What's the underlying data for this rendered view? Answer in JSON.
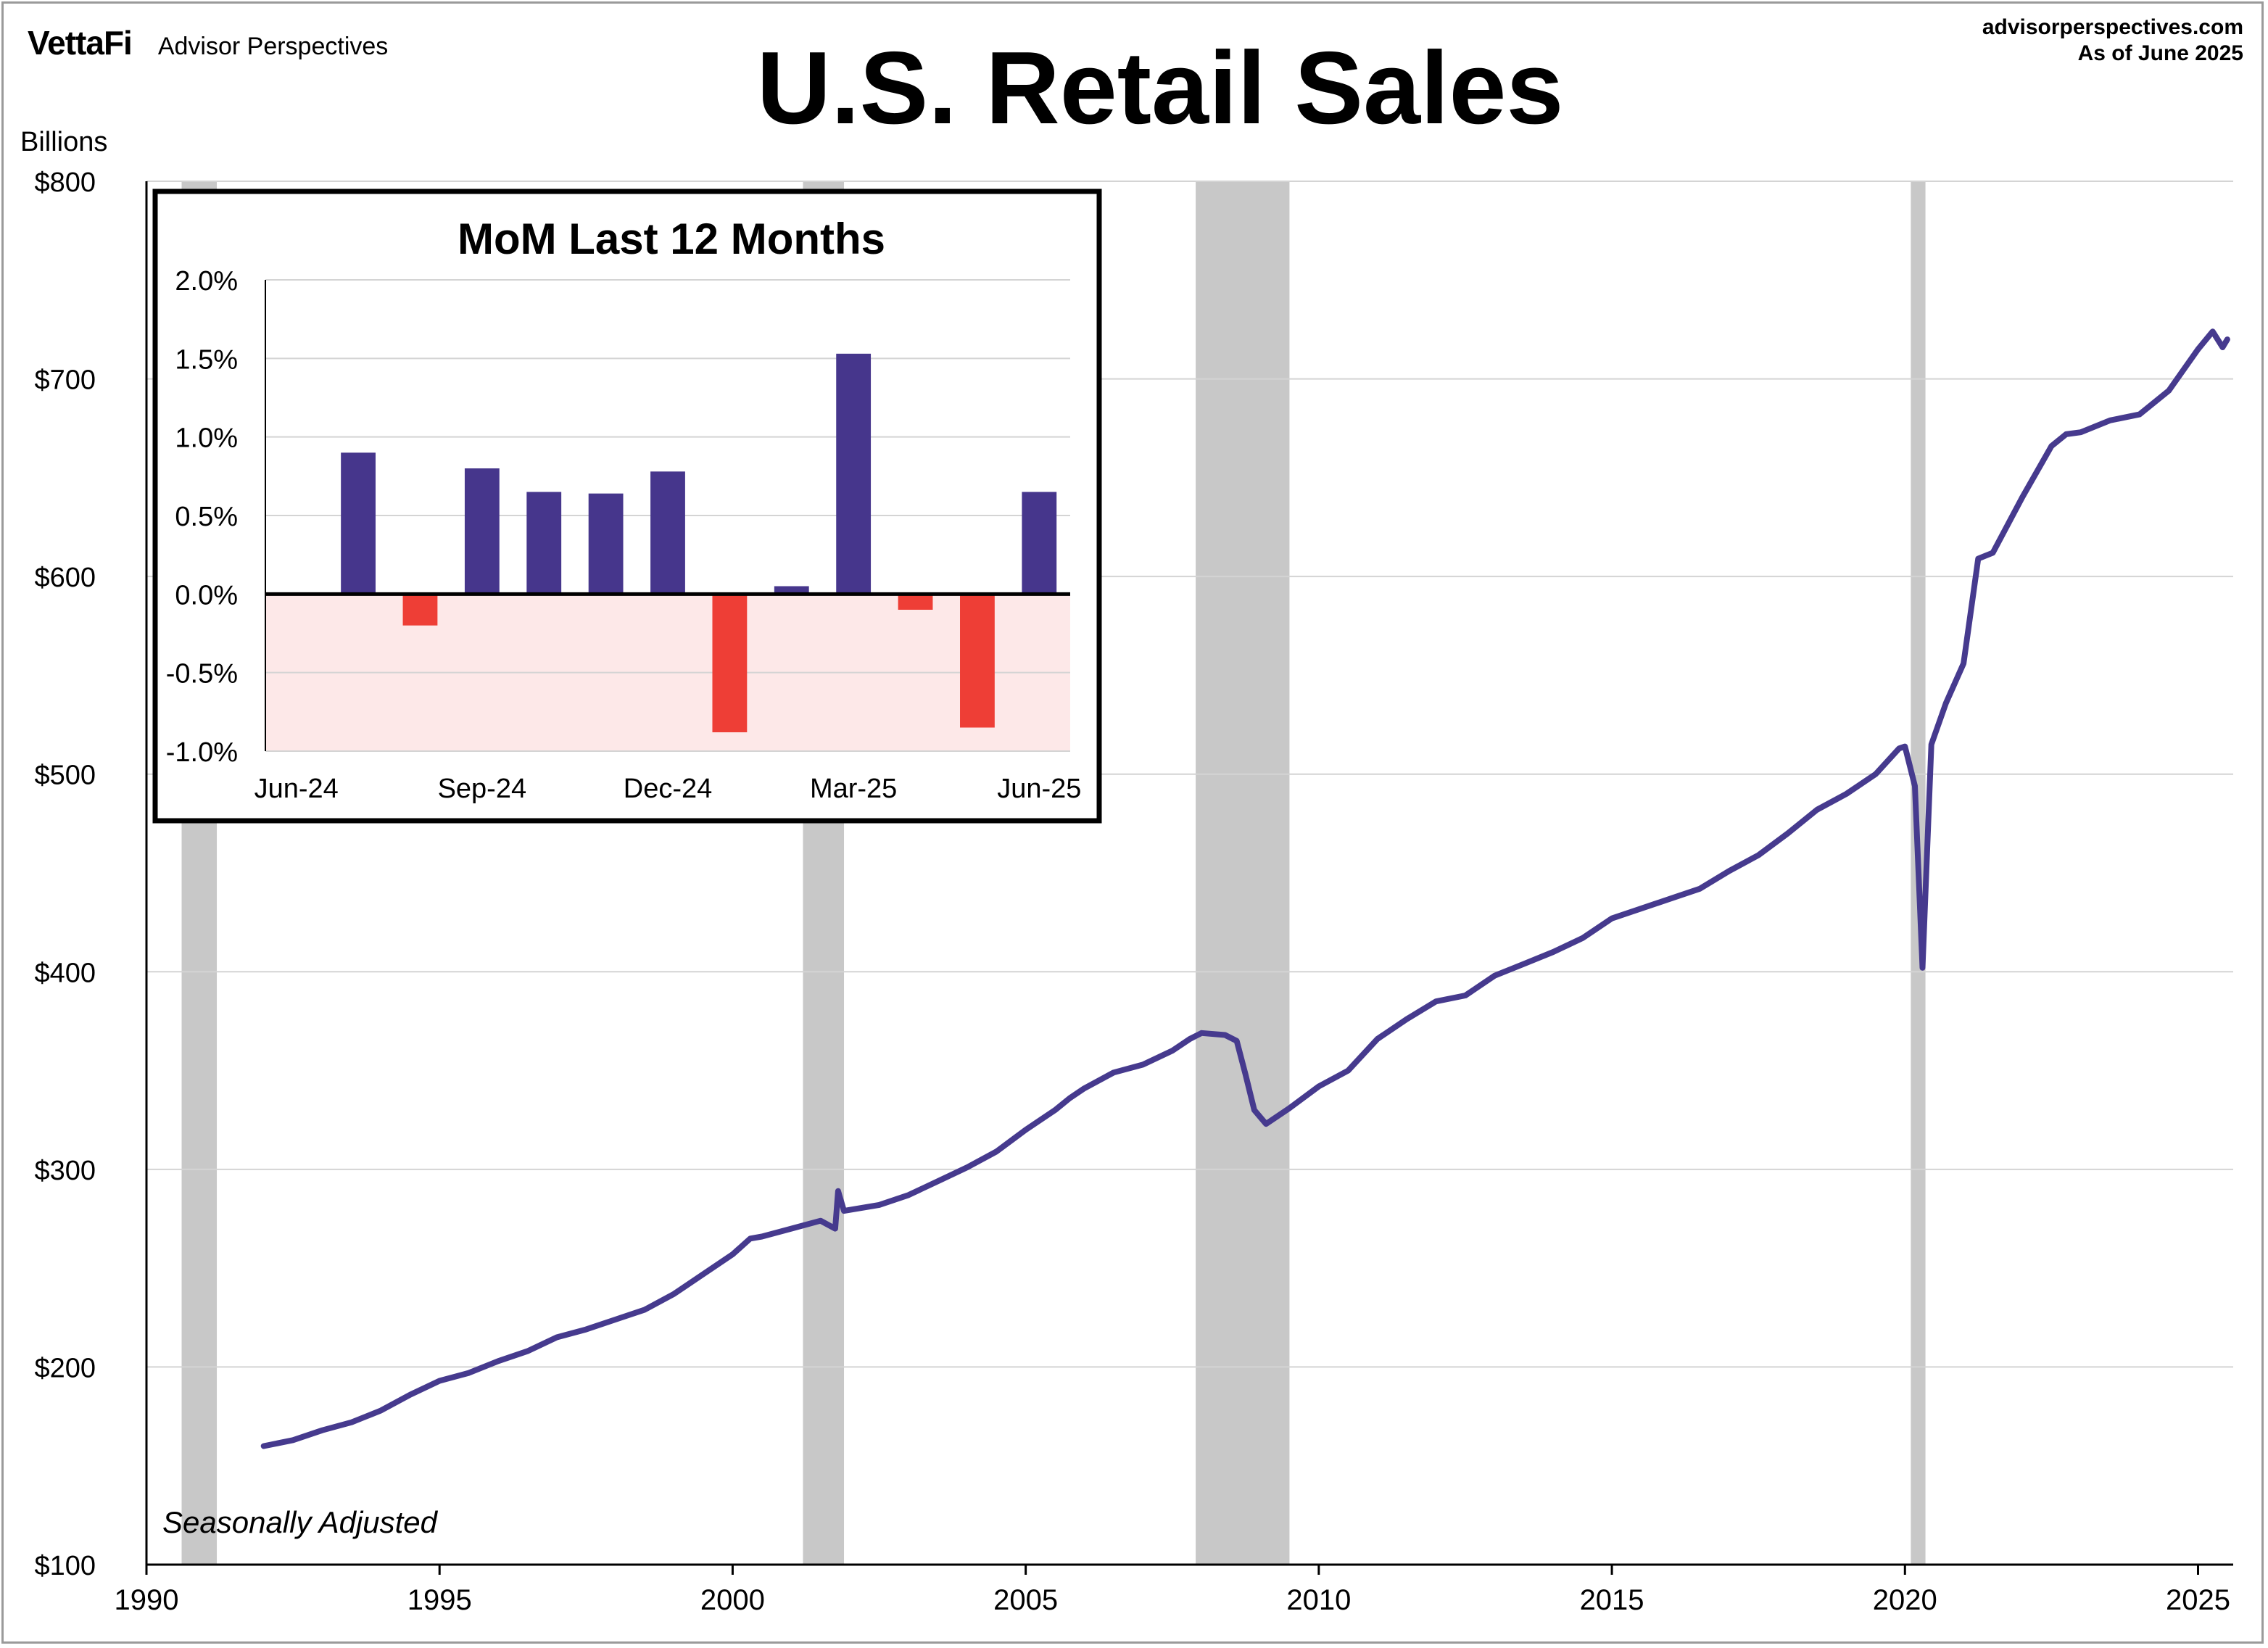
{
  "header": {
    "logo": "VettaFi",
    "brand": "Advisor Perspectives",
    "site": "advisorperspectives.com",
    "as_of": "As of June 2025",
    "title": "U.S. Retail Sales"
  },
  "note": "Seasonally Adjusted",
  "colors": {
    "line": "#463a8e",
    "positive_bar": "#46368c",
    "negative_bar": "#ee3e36",
    "recession": "#c8c8c8",
    "negative_zone": "#fde8e8",
    "grid": "#d4d4d4"
  },
  "chart_data": [
    {
      "type": "line",
      "title": "U.S. Retail Sales",
      "ylabel": "Billions",
      "y_ticks": [
        "$100",
        "$200",
        "$300",
        "$400",
        "$500",
        "$600",
        "$700",
        "$800"
      ],
      "x_ticks": [
        "1990",
        "1995",
        "2000",
        "2005",
        "2010",
        "2015",
        "2020",
        "2025"
      ],
      "xlim": [
        1990,
        2025.6
      ],
      "ylim": [
        100,
        800
      ],
      "grid": true,
      "recessions": [
        [
          1990.6,
          1991.2
        ],
        [
          2001.2,
          2001.9
        ],
        [
          2007.9,
          2009.5
        ],
        [
          2020.1,
          2020.35
        ]
      ],
      "series": [
        {
          "points": [
            [
              1992.0,
              160
            ],
            [
              1992.5,
              163
            ],
            [
              1993.0,
              168
            ],
            [
              1993.5,
              172
            ],
            [
              1994.0,
              178
            ],
            [
              1994.5,
              186
            ],
            [
              1995.0,
              193
            ],
            [
              1995.5,
              197
            ],
            [
              1996.0,
              203
            ],
            [
              1996.5,
              208
            ],
            [
              1997.0,
              215
            ],
            [
              1997.5,
              219
            ],
            [
              1998.0,
              224
            ],
            [
              1998.5,
              229
            ],
            [
              1999.0,
              237
            ],
            [
              1999.5,
              247
            ],
            [
              2000.0,
              257
            ],
            [
              2000.3,
              265
            ],
            [
              2000.5,
              266
            ],
            [
              2001.0,
              270
            ],
            [
              2001.5,
              274
            ],
            [
              2001.75,
              270
            ],
            [
              2001.8,
              289
            ],
            [
              2001.9,
              279
            ],
            [
              2002.5,
              282
            ],
            [
              2003.0,
              287
            ],
            [
              2003.5,
              294
            ],
            [
              2004.0,
              301
            ],
            [
              2004.5,
              309
            ],
            [
              2005.0,
              320
            ],
            [
              2005.5,
              330
            ],
            [
              2005.75,
              336
            ],
            [
              2006.0,
              341
            ],
            [
              2006.5,
              349
            ],
            [
              2007.0,
              353
            ],
            [
              2007.5,
              360
            ],
            [
              2007.8,
              366
            ],
            [
              2008.0,
              369
            ],
            [
              2008.4,
              368
            ],
            [
              2008.6,
              365
            ],
            [
              2008.75,
              348
            ],
            [
              2008.9,
              330
            ],
            [
              2009.1,
              323
            ],
            [
              2009.5,
              331
            ],
            [
              2010.0,
              342
            ],
            [
              2010.5,
              350
            ],
            [
              2011.0,
              366
            ],
            [
              2011.5,
              376
            ],
            [
              2012.0,
              385
            ],
            [
              2012.5,
              388
            ],
            [
              2013.0,
              398
            ],
            [
              2013.5,
              404
            ],
            [
              2014.0,
              410
            ],
            [
              2014.5,
              417
            ],
            [
              2015.0,
              427
            ],
            [
              2015.5,
              432
            ],
            [
              2016.0,
              437
            ],
            [
              2016.5,
              442
            ],
            [
              2017.0,
              451
            ],
            [
              2017.5,
              459
            ],
            [
              2018.0,
              470
            ],
            [
              2018.5,
              482
            ],
            [
              2019.0,
              490
            ],
            [
              2019.5,
              500
            ],
            [
              2019.9,
              513
            ],
            [
              2020.0,
              514
            ],
            [
              2020.17,
              494
            ],
            [
              2020.3,
              402
            ],
            [
              2020.45,
              515
            ],
            [
              2020.7,
              536
            ],
            [
              2021.0,
              556
            ],
            [
              2021.25,
              609
            ],
            [
              2021.5,
              612
            ],
            [
              2022.0,
              640
            ],
            [
              2022.5,
              666
            ],
            [
              2022.75,
              672
            ],
            [
              2023.0,
              673
            ],
            [
              2023.5,
              679
            ],
            [
              2024.0,
              682
            ],
            [
              2024.5,
              694
            ],
            [
              2025.0,
              715
            ],
            [
              2025.25,
              724
            ],
            [
              2025.42,
              716
            ],
            [
              2025.5,
              720
            ]
          ]
        }
      ]
    },
    {
      "type": "bar",
      "title": "MoM Last 12 Months",
      "categories": [
        "Jun-24",
        "Jul-24",
        "Aug-24",
        "Sep-24",
        "Oct-24",
        "Nov-24",
        "Dec-24",
        "Jan-25",
        "Feb-25",
        "Mar-25",
        "Apr-25",
        "May-25",
        "Jun-25"
      ],
      "x_tick_labels": [
        "Jun-24",
        "Sep-24",
        "Dec-24",
        "Mar-25",
        "Jun-25"
      ],
      "values": [
        0.0,
        0.9,
        -0.2,
        0.8,
        0.65,
        0.64,
        0.78,
        -0.88,
        0.05,
        1.53,
        -0.1,
        -0.85,
        0.65
      ],
      "y_ticks": [
        "2.0%",
        "1.5%",
        "1.0%",
        "0.5%",
        "0.0%",
        "-0.5%",
        "-1.0%"
      ],
      "ylim": [
        -1.0,
        2.0
      ],
      "grid": true
    }
  ]
}
